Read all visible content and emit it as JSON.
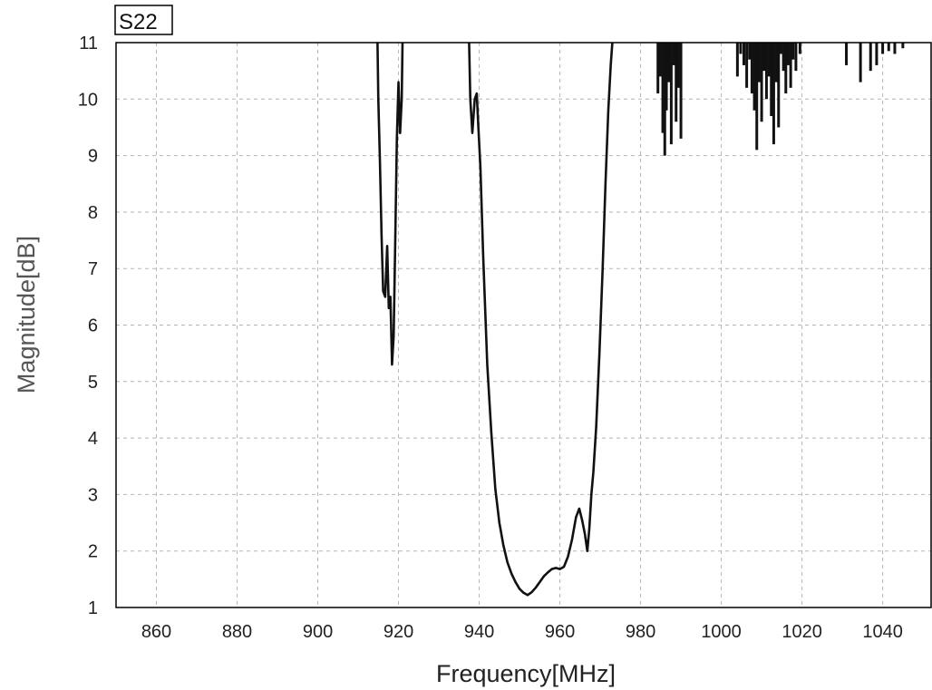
{
  "chart_data": {
    "type": "line",
    "title": "",
    "legend": "S22",
    "legend_placement": "top-left",
    "xlabel": "Frequency[MHz]",
    "ylabel": "Magnitude[dB]",
    "xlim": [
      850,
      1052
    ],
    "ylim": [
      1,
      11
    ],
    "grid": true,
    "x_ticks": [
      860,
      880,
      900,
      920,
      940,
      960,
      980,
      1000,
      1020,
      1040
    ],
    "y_ticks": [
      1,
      2,
      3,
      4,
      5,
      6,
      7,
      8,
      9,
      10,
      11
    ],
    "series": [
      {
        "name": "S22",
        "segments": [
          [
            [
              914.8,
              11
            ],
            [
              915.0,
              10.0
            ],
            [
              915.4,
              8.9
            ],
            [
              915.8,
              7.6
            ],
            [
              916.2,
              6.6
            ],
            [
              916.7,
              6.5
            ],
            [
              917.2,
              7.4
            ],
            [
              917.6,
              6.3
            ],
            [
              918.0,
              6.5
            ],
            [
              918.4,
              5.3
            ],
            [
              918.8,
              5.8
            ],
            [
              919.2,
              7.5
            ],
            [
              919.6,
              9.3
            ],
            [
              920.0,
              10.3
            ],
            [
              920.4,
              9.4
            ],
            [
              920.8,
              10.0
            ],
            [
              921.0,
              11
            ]
          ],
          [
            [
              937.5,
              11
            ],
            [
              937.8,
              10.0
            ],
            [
              938.3,
              9.4
            ],
            [
              938.9,
              10.0
            ],
            [
              939.4,
              10.1
            ],
            [
              939.8,
              9.5
            ],
            [
              940.3,
              8.8
            ],
            [
              941.0,
              7.2
            ],
            [
              942.0,
              5.3
            ],
            [
              943.0,
              4.1
            ],
            [
              944.0,
              3.1
            ],
            [
              945.0,
              2.5
            ],
            [
              946.0,
              2.1
            ],
            [
              947.0,
              1.8
            ],
            [
              948.0,
              1.6
            ],
            [
              949.0,
              1.45
            ],
            [
              950.0,
              1.33
            ],
            [
              951.0,
              1.26
            ],
            [
              952.0,
              1.22
            ],
            [
              953.0,
              1.27
            ],
            [
              954.0,
              1.35
            ],
            [
              955.0,
              1.45
            ],
            [
              956.0,
              1.55
            ],
            [
              957.0,
              1.62
            ],
            [
              958.0,
              1.68
            ],
            [
              959.0,
              1.7
            ],
            [
              960.0,
              1.68
            ],
            [
              961.0,
              1.72
            ],
            [
              962.0,
              1.9
            ],
            [
              963.0,
              2.2
            ],
            [
              964.0,
              2.6
            ],
            [
              964.8,
              2.75
            ],
            [
              965.5,
              2.55
            ],
            [
              966.2,
              2.3
            ],
            [
              966.8,
              2.0
            ],
            [
              967.3,
              2.4
            ],
            [
              967.8,
              3.0
            ],
            [
              968.3,
              3.4
            ],
            [
              969.0,
              4.2
            ],
            [
              969.8,
              5.5
            ],
            [
              970.6,
              7.0
            ],
            [
              971.3,
              8.5
            ],
            [
              972.0,
              9.8
            ],
            [
              972.6,
              10.6
            ],
            [
              973.0,
              11
            ]
          ]
        ],
        "spikes": [
          [
            984.3,
            10.1
          ],
          [
            984.9,
            10.4
          ],
          [
            985.5,
            9.4
          ],
          [
            986.0,
            9.0
          ],
          [
            986.4,
            9.8
          ],
          [
            987.0,
            10.3
          ],
          [
            987.6,
            9.2
          ],
          [
            988.2,
            10.6
          ],
          [
            988.8,
            9.6
          ],
          [
            989.4,
            10.2
          ],
          [
            990.0,
            9.3
          ],
          [
            1004.0,
            10.4
          ],
          [
            1004.8,
            10.8
          ],
          [
            1005.6,
            10.6
          ],
          [
            1006.3,
            10.2
          ],
          [
            1007.0,
            10.7
          ],
          [
            1007.6,
            10.1
          ],
          [
            1008.2,
            9.8
          ],
          [
            1008.8,
            9.1
          ],
          [
            1009.4,
            10.3
          ],
          [
            1010.0,
            9.6
          ],
          [
            1010.6,
            10.5
          ],
          [
            1011.2,
            10.0
          ],
          [
            1011.8,
            10.4
          ],
          [
            1012.4,
            9.7
          ],
          [
            1013.0,
            9.2
          ],
          [
            1013.6,
            10.3
          ],
          [
            1014.2,
            9.5
          ],
          [
            1014.8,
            10.8
          ],
          [
            1015.4,
            10.5
          ],
          [
            1016.0,
            10.1
          ],
          [
            1016.6,
            10.6
          ],
          [
            1017.2,
            10.2
          ],
          [
            1017.8,
            10.7
          ],
          [
            1018.5,
            10.5
          ],
          [
            1019.5,
            10.8
          ],
          [
            1031.0,
            10.6
          ],
          [
            1034.5,
            10.3
          ],
          [
            1037.0,
            10.5
          ],
          [
            1038.5,
            10.6
          ],
          [
            1040.0,
            10.8
          ],
          [
            1041.5,
            10.85
          ],
          [
            1043.0,
            10.8
          ],
          [
            1045.0,
            10.9
          ]
        ]
      }
    ]
  }
}
